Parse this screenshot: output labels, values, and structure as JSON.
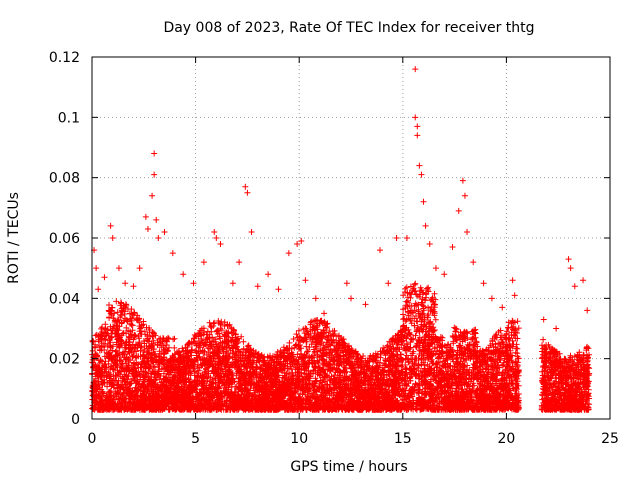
{
  "chart_data": {
    "type": "scatter",
    "title": "Day 008 of 2023, Rate Of TEC Index for receiver thtg",
    "xlabel": "GPS time / hours",
    "ylabel": "ROTI / TECUs",
    "xlim": [
      0,
      25
    ],
    "ylim": [
      0,
      0.12
    ],
    "xticks": [
      0,
      5,
      10,
      15,
      20,
      25
    ],
    "xtick_labels": [
      "0",
      "5",
      "10",
      "15",
      "20",
      "25"
    ],
    "yticks": [
      0,
      0.02,
      0.04,
      0.06,
      0.08,
      0.1,
      0.12
    ],
    "ytick_labels": [
      "0",
      "0.02",
      "0.04",
      "0.06",
      "0.08",
      "0.1",
      "0.12"
    ],
    "grid": true,
    "marker": "plus",
    "color": "#ff0000",
    "data_gaps_hours": [
      [
        20.6,
        21.7
      ]
    ],
    "points": [
      [
        0.1,
        0.056
      ],
      [
        0.2,
        0.05
      ],
      [
        0.3,
        0.043
      ],
      [
        0.6,
        0.047
      ],
      [
        0.9,
        0.064
      ],
      [
        1.0,
        0.06
      ],
      [
        1.3,
        0.05
      ],
      [
        1.6,
        0.045
      ],
      [
        2.0,
        0.044
      ],
      [
        2.3,
        0.05
      ],
      [
        2.6,
        0.067
      ],
      [
        2.7,
        0.063
      ],
      [
        2.9,
        0.074
      ],
      [
        3.0,
        0.088
      ],
      [
        3.0,
        0.081
      ],
      [
        3.1,
        0.066
      ],
      [
        3.2,
        0.06
      ],
      [
        3.5,
        0.062
      ],
      [
        3.9,
        0.055
      ],
      [
        4.4,
        0.048
      ],
      [
        4.9,
        0.045
      ],
      [
        5.4,
        0.052
      ],
      [
        5.9,
        0.062
      ],
      [
        6.0,
        0.06
      ],
      [
        6.2,
        0.058
      ],
      [
        6.8,
        0.045
      ],
      [
        7.1,
        0.052
      ],
      [
        7.4,
        0.077
      ],
      [
        7.5,
        0.075
      ],
      [
        7.7,
        0.062
      ],
      [
        8.0,
        0.044
      ],
      [
        8.5,
        0.048
      ],
      [
        9.0,
        0.043
      ],
      [
        9.5,
        0.055
      ],
      [
        9.9,
        0.058
      ],
      [
        10.1,
        0.059
      ],
      [
        10.3,
        0.046
      ],
      [
        10.8,
        0.04
      ],
      [
        11.2,
        0.035
      ],
      [
        12.3,
        0.045
      ],
      [
        12.5,
        0.04
      ],
      [
        13.2,
        0.038
      ],
      [
        13.9,
        0.056
      ],
      [
        14.3,
        0.045
      ],
      [
        14.7,
        0.06
      ],
      [
        15.2,
        0.06
      ],
      [
        15.6,
        0.116
      ],
      [
        15.6,
        0.1
      ],
      [
        15.7,
        0.097
      ],
      [
        15.7,
        0.094
      ],
      [
        15.8,
        0.084
      ],
      [
        15.9,
        0.081
      ],
      [
        16.0,
        0.072
      ],
      [
        16.1,
        0.064
      ],
      [
        16.3,
        0.058
      ],
      [
        16.6,
        0.05
      ],
      [
        17.0,
        0.048
      ],
      [
        17.4,
        0.057
      ],
      [
        17.7,
        0.069
      ],
      [
        17.9,
        0.079
      ],
      [
        18.0,
        0.074
      ],
      [
        18.1,
        0.062
      ],
      [
        18.4,
        0.052
      ],
      [
        18.9,
        0.045
      ],
      [
        19.3,
        0.04
      ],
      [
        19.8,
        0.037
      ],
      [
        20.3,
        0.046
      ],
      [
        20.4,
        0.041
      ],
      [
        21.8,
        0.033
      ],
      [
        22.4,
        0.03
      ],
      [
        23.0,
        0.053
      ],
      [
        23.1,
        0.05
      ],
      [
        23.3,
        0.044
      ],
      [
        23.7,
        0.046
      ],
      [
        23.9,
        0.036
      ]
    ]
  }
}
